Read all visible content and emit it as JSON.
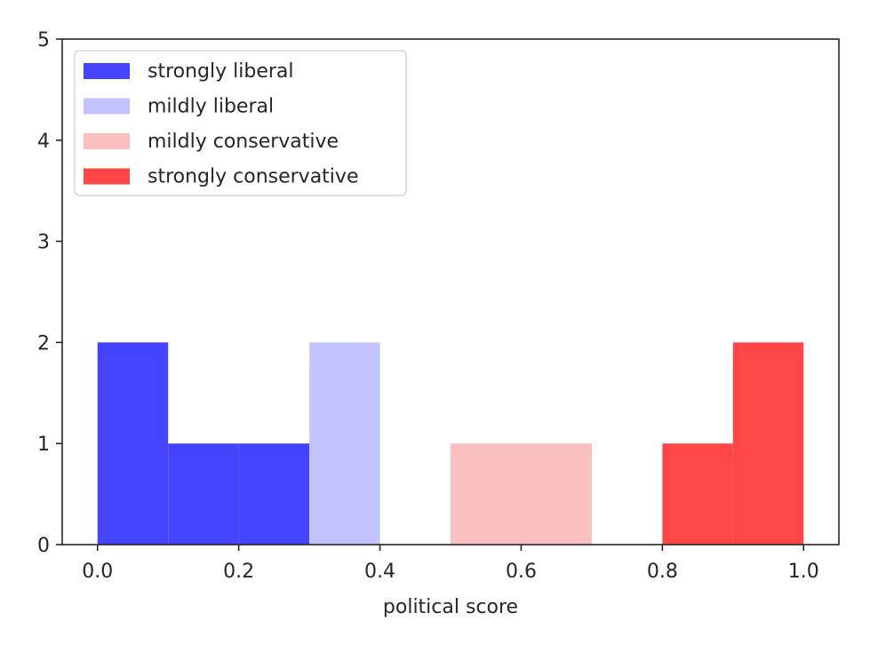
{
  "chart_data": {
    "type": "bar",
    "title": "",
    "xlabel": "political score",
    "ylabel": "",
    "xlim": [
      -0.05,
      1.05
    ],
    "ylim": [
      0,
      5
    ],
    "x_ticks": [
      "0.0",
      "0.2",
      "0.4",
      "0.6",
      "0.8",
      "1.0"
    ],
    "x_tick_values": [
      0.0,
      0.2,
      0.4,
      0.6,
      0.8,
      1.0
    ],
    "y_ticks": [
      "0",
      "1",
      "2",
      "3",
      "4",
      "5"
    ],
    "y_tick_values": [
      0,
      1,
      2,
      3,
      4,
      5
    ],
    "grid": false,
    "legend_position": "upper-left",
    "series": [
      {
        "name": "strongly liberal",
        "color": "#4444ff",
        "bins": [
          {
            "x0": 0.0,
            "x1": 0.1,
            "count": 2
          },
          {
            "x0": 0.1,
            "x1": 0.2,
            "count": 1
          },
          {
            "x0": 0.2,
            "x1": 0.3,
            "count": 1
          }
        ]
      },
      {
        "name": "mildly liberal",
        "color": "#c2c2fc",
        "bins": [
          {
            "x0": 0.3,
            "x1": 0.4,
            "count": 2
          }
        ]
      },
      {
        "name": "mildly conservative",
        "color": "#fac0c0",
        "bins": [
          {
            "x0": 0.5,
            "x1": 0.6,
            "count": 1
          },
          {
            "x0": 0.6,
            "x1": 0.7,
            "count": 1
          }
        ]
      },
      {
        "name": "strongly conservative",
        "color": "#fe4646",
        "bins": [
          {
            "x0": 0.8,
            "x1": 0.9,
            "count": 1
          },
          {
            "x0": 0.9,
            "x1": 1.0,
            "count": 2
          }
        ]
      }
    ]
  }
}
